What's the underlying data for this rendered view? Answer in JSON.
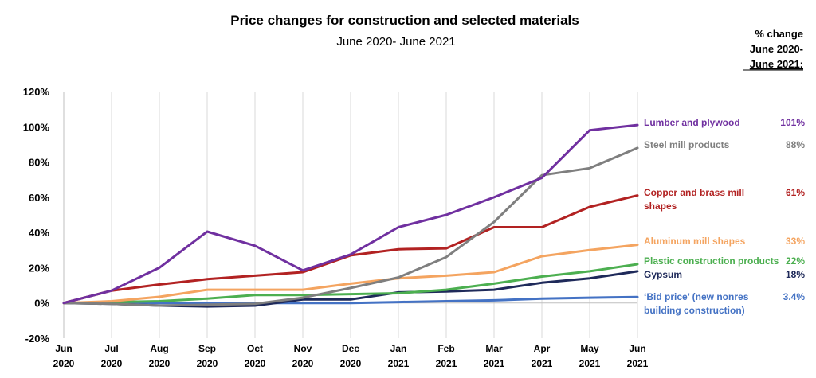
{
  "chart_data": {
    "type": "line",
    "title": "Price changes for construction and selected materials",
    "subtitle": "June 2020- June 2021",
    "change_header": [
      "% change",
      "June 2020-",
      "June 2021:"
    ],
    "categories": [
      [
        "Jun",
        "2020"
      ],
      [
        "Jul",
        "2020"
      ],
      [
        "Aug",
        "2020"
      ],
      [
        "Sep",
        "2020"
      ],
      [
        "Oct",
        "2020"
      ],
      [
        "Nov",
        "2020"
      ],
      [
        "Dec",
        "2020"
      ],
      [
        "Jan",
        "2021"
      ],
      [
        "Feb",
        "2021"
      ],
      [
        "Mar",
        "2021"
      ],
      [
        "Apr",
        "2021"
      ],
      [
        "May",
        "2021"
      ],
      [
        "Jun",
        "2021"
      ]
    ],
    "ylim": [
      -20,
      120
    ],
    "yticks": [
      -20,
      0,
      20,
      40,
      60,
      80,
      100,
      120
    ],
    "ytick_labels": [
      "-20%",
      "0%",
      "20%",
      "40%",
      "60%",
      "80%",
      "100%",
      "120%"
    ],
    "grid": "vertical",
    "legend": "right",
    "series": [
      {
        "name": "Lumber and plywood",
        "label_lines": [
          "Lumber and plywood"
        ],
        "change": "101%",
        "color": "#7030A0",
        "values": [
          0,
          7,
          20,
          40.5,
          32.5,
          18.5,
          27.5,
          43,
          50,
          60,
          71,
          98,
          101
        ]
      },
      {
        "name": "Steel mill products",
        "label_lines": [
          "Steel mill products"
        ],
        "change": "88%",
        "color": "#7F7F7F",
        "values": [
          0,
          -0.5,
          -1.5,
          -1,
          -0.5,
          3,
          8.5,
          14.5,
          26,
          46,
          72.5,
          76.5,
          88
        ]
      },
      {
        "name": "Copper and brass mill shapes",
        "label_lines": [
          "Copper and brass mill",
          "shapes"
        ],
        "change": "61%",
        "color": "#B22222",
        "values": [
          0,
          7,
          10.5,
          13.5,
          15.5,
          17.5,
          27,
          30.5,
          31,
          43,
          43,
          54.5,
          61
        ]
      },
      {
        "name": "Aluminum mill shapes",
        "label_lines": [
          "Aluminum mill shapes"
        ],
        "change": "33%",
        "color": "#F4A460",
        "values": [
          0,
          1,
          3.5,
          7.5,
          7.5,
          7.5,
          11,
          14,
          15.5,
          17.5,
          26.5,
          30,
          33
        ]
      },
      {
        "name": "Plastic construction products",
        "label_lines": [
          "Plastic construction products"
        ],
        "change": "22%",
        "color": "#4CAF50",
        "values": [
          0,
          0.5,
          1,
          2.5,
          4.5,
          4.5,
          5,
          5.5,
          7.5,
          11,
          15,
          18,
          22
        ]
      },
      {
        "name": "Gypsum",
        "label_lines": [
          "Gypsum"
        ],
        "change": "18%",
        "color": "#1F2A5A",
        "values": [
          0,
          -0.5,
          -1.5,
          -2,
          -1.5,
          2,
          2,
          6,
          6.5,
          7.5,
          11.5,
          14,
          18
        ]
      },
      {
        "name": "'Bid price' (new nonres building construction)",
        "label_lines": [
          "‘Bid price’ (new nonres",
          "building construction)"
        ],
        "change": "3.4%",
        "color": "#4472C4",
        "values": [
          0,
          0,
          0,
          0,
          0,
          0,
          0,
          0.5,
          1,
          1.5,
          2.5,
          3,
          3.4
        ]
      }
    ]
  }
}
